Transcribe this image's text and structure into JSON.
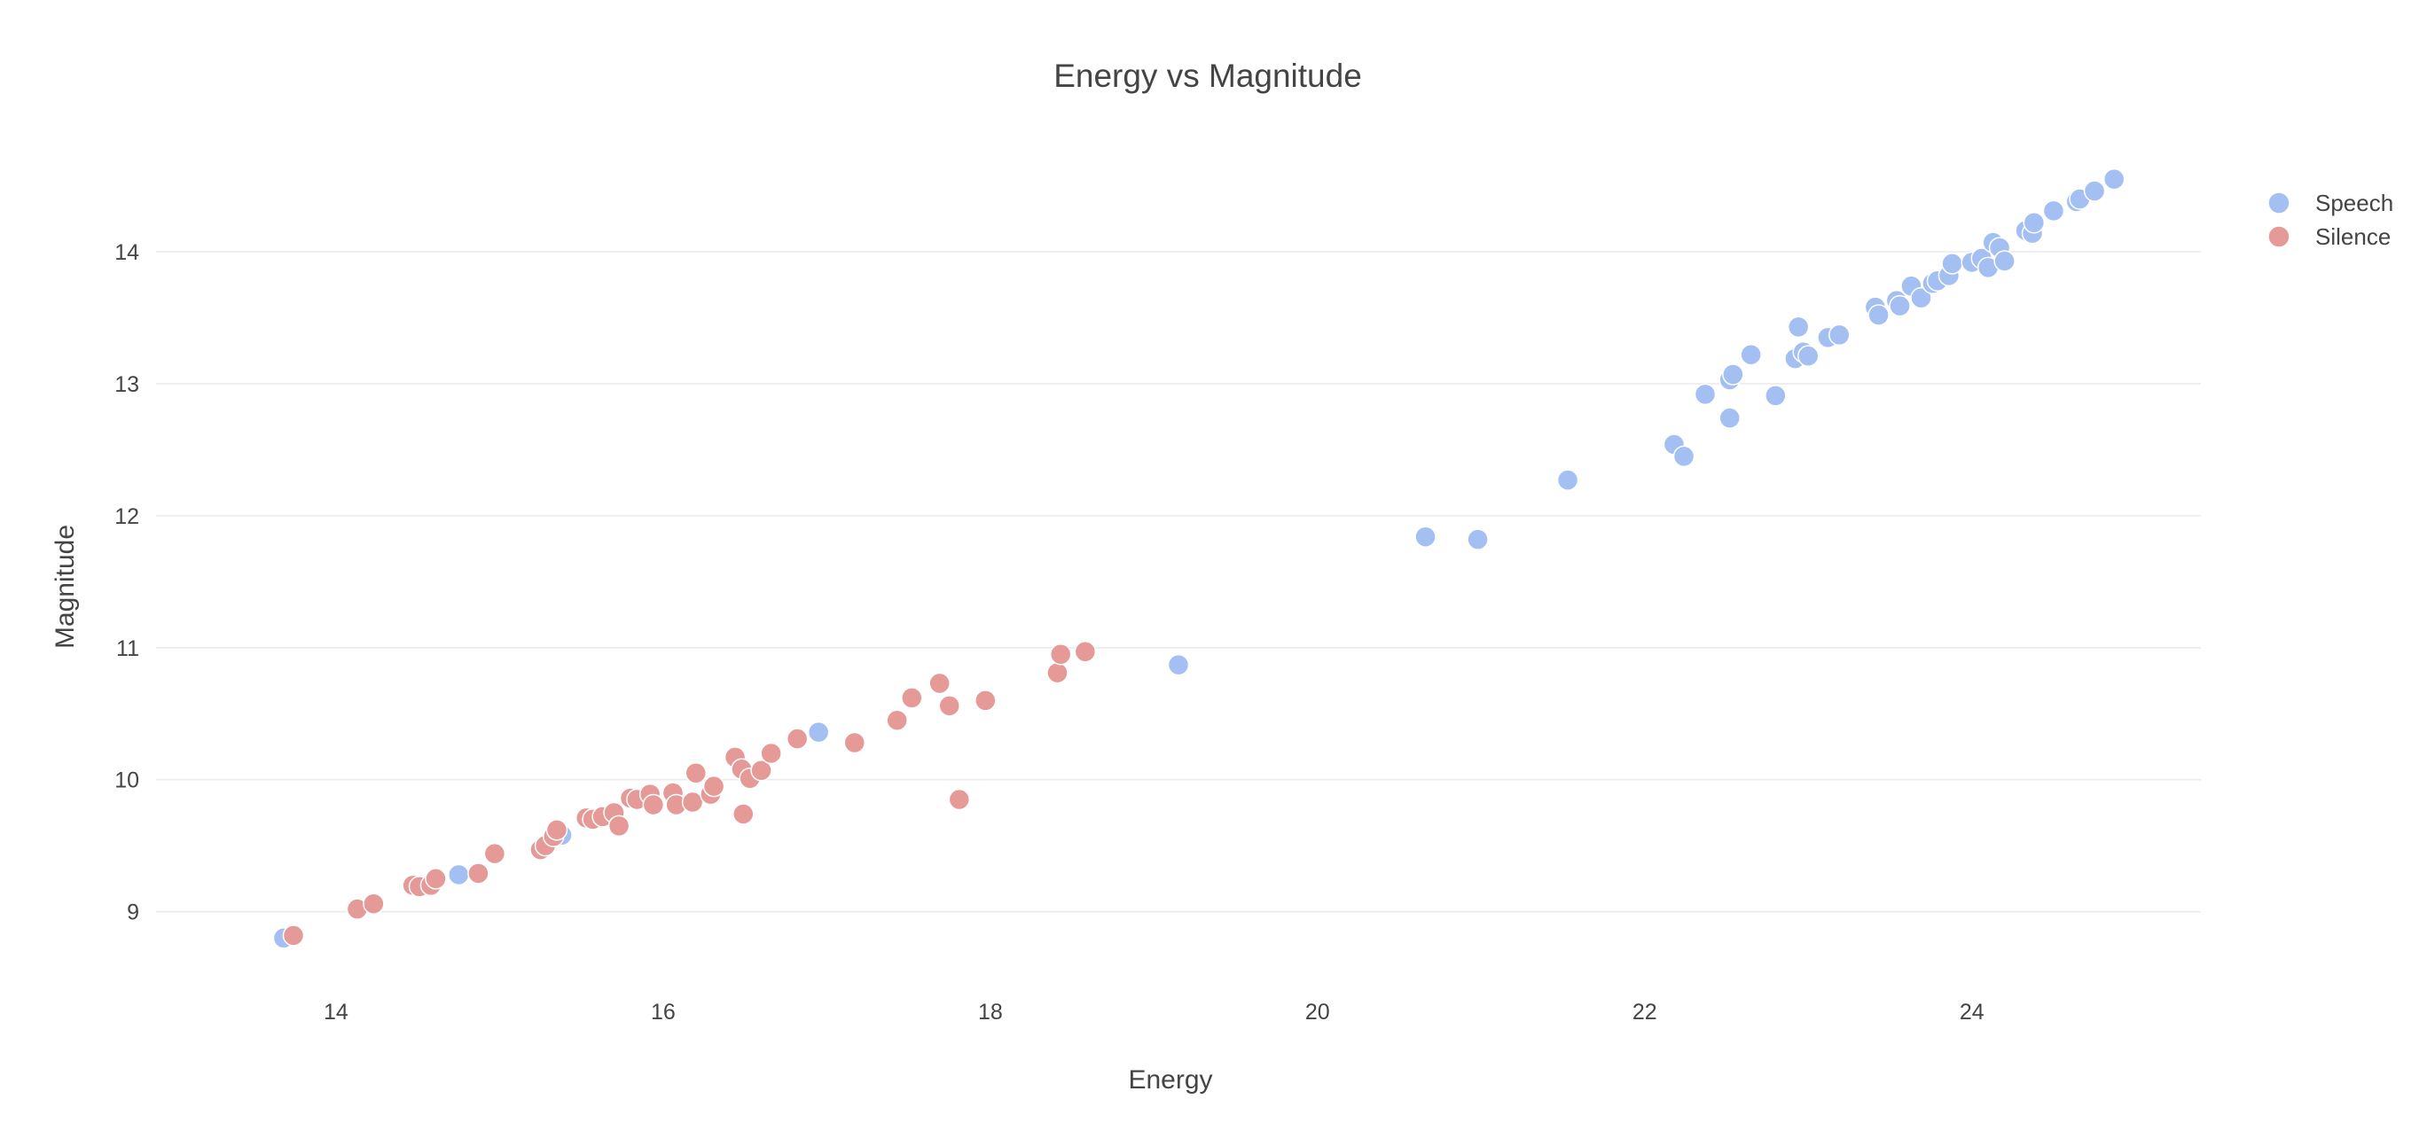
{
  "chart_data": {
    "type": "scatter",
    "title": "Energy vs Magnitude",
    "xlabel": "Energy",
    "ylabel": "Magnitude",
    "xlim": [
      12.9,
      25.4
    ],
    "ylim": [
      8.4,
      14.9
    ],
    "x_ticks": [
      {
        "value": 14,
        "label": "14"
      },
      {
        "value": 16,
        "label": "16"
      },
      {
        "value": 18,
        "label": "18"
      },
      {
        "value": 20,
        "label": "20"
      },
      {
        "value": 22,
        "label": "22"
      },
      {
        "value": 24,
        "label": "24"
      }
    ],
    "y_ticks": [
      {
        "value": 9,
        "label": "9"
      },
      {
        "value": 10,
        "label": "10"
      },
      {
        "value": 11,
        "label": "11"
      },
      {
        "value": 12,
        "label": "12"
      },
      {
        "value": 13,
        "label": "13"
      },
      {
        "value": 14,
        "label": "14"
      }
    ],
    "grid": "y-only",
    "legend_position": "top-right",
    "series": [
      {
        "name": "Speech",
        "color": "#a4bff2",
        "points": [
          [
            13.68,
            8.8
          ],
          [
            14.75,
            9.28
          ],
          [
            15.38,
            9.58
          ],
          [
            16.95,
            10.36
          ],
          [
            19.15,
            10.87
          ],
          [
            20.66,
            11.84
          ],
          [
            20.98,
            11.82
          ],
          [
            21.53,
            12.27
          ],
          [
            22.18,
            12.54
          ],
          [
            22.24,
            12.45
          ],
          [
            22.37,
            12.92
          ],
          [
            22.52,
            12.74
          ],
          [
            22.52,
            13.03
          ],
          [
            22.54,
            13.07
          ],
          [
            22.65,
            13.22
          ],
          [
            22.8,
            12.91
          ],
          [
            22.92,
            13.19
          ],
          [
            22.94,
            13.43
          ],
          [
            22.97,
            13.24
          ],
          [
            23.0,
            13.21
          ],
          [
            23.12,
            13.35
          ],
          [
            23.19,
            13.37
          ],
          [
            23.41,
            13.58
          ],
          [
            23.43,
            13.52
          ],
          [
            23.54,
            13.63
          ],
          [
            23.56,
            13.59
          ],
          [
            23.63,
            13.74
          ],
          [
            23.69,
            13.65
          ],
          [
            23.76,
            13.76
          ],
          [
            23.79,
            13.78
          ],
          [
            23.86,
            13.82
          ],
          [
            23.88,
            13.91
          ],
          [
            24.0,
            13.92
          ],
          [
            24.06,
            13.95
          ],
          [
            24.1,
            13.88
          ],
          [
            24.13,
            14.07
          ],
          [
            24.17,
            14.03
          ],
          [
            24.2,
            13.93
          ],
          [
            24.33,
            14.16
          ],
          [
            24.37,
            14.14
          ],
          [
            24.38,
            14.22
          ],
          [
            24.5,
            14.31
          ],
          [
            24.64,
            14.38
          ],
          [
            24.66,
            14.4
          ],
          [
            24.75,
            14.46
          ],
          [
            24.87,
            14.55
          ]
        ]
      },
      {
        "name": "Silence",
        "color": "#e59a98",
        "points": [
          [
            13.74,
            8.82
          ],
          [
            14.13,
            9.02
          ],
          [
            14.23,
            9.06
          ],
          [
            14.47,
            9.2
          ],
          [
            14.51,
            9.19
          ],
          [
            14.58,
            9.2
          ],
          [
            14.61,
            9.25
          ],
          [
            14.87,
            9.29
          ],
          [
            14.97,
            9.44
          ],
          [
            15.25,
            9.47
          ],
          [
            15.28,
            9.5
          ],
          [
            15.33,
            9.57
          ],
          [
            15.35,
            9.62
          ],
          [
            15.53,
            9.71
          ],
          [
            15.57,
            9.7
          ],
          [
            15.63,
            9.72
          ],
          [
            15.7,
            9.75
          ],
          [
            15.73,
            9.65
          ],
          [
            15.8,
            9.86
          ],
          [
            15.84,
            9.85
          ],
          [
            15.92,
            9.89
          ],
          [
            15.94,
            9.81
          ],
          [
            16.06,
            9.9
          ],
          [
            16.08,
            9.81
          ],
          [
            16.18,
            9.83
          ],
          [
            16.2,
            10.05
          ],
          [
            16.29,
            9.89
          ],
          [
            16.31,
            9.95
          ],
          [
            16.44,
            10.17
          ],
          [
            16.48,
            10.08
          ],
          [
            16.49,
            9.74
          ],
          [
            16.53,
            10.01
          ],
          [
            16.6,
            10.07
          ],
          [
            16.66,
            10.2
          ],
          [
            16.82,
            10.31
          ],
          [
            17.17,
            10.28
          ],
          [
            17.43,
            10.45
          ],
          [
            17.52,
            10.62
          ],
          [
            17.69,
            10.73
          ],
          [
            17.75,
            10.56
          ],
          [
            17.81,
            9.85
          ],
          [
            17.97,
            10.6
          ],
          [
            18.41,
            10.81
          ],
          [
            18.43,
            10.95
          ],
          [
            18.58,
            10.97
          ]
        ]
      }
    ]
  }
}
